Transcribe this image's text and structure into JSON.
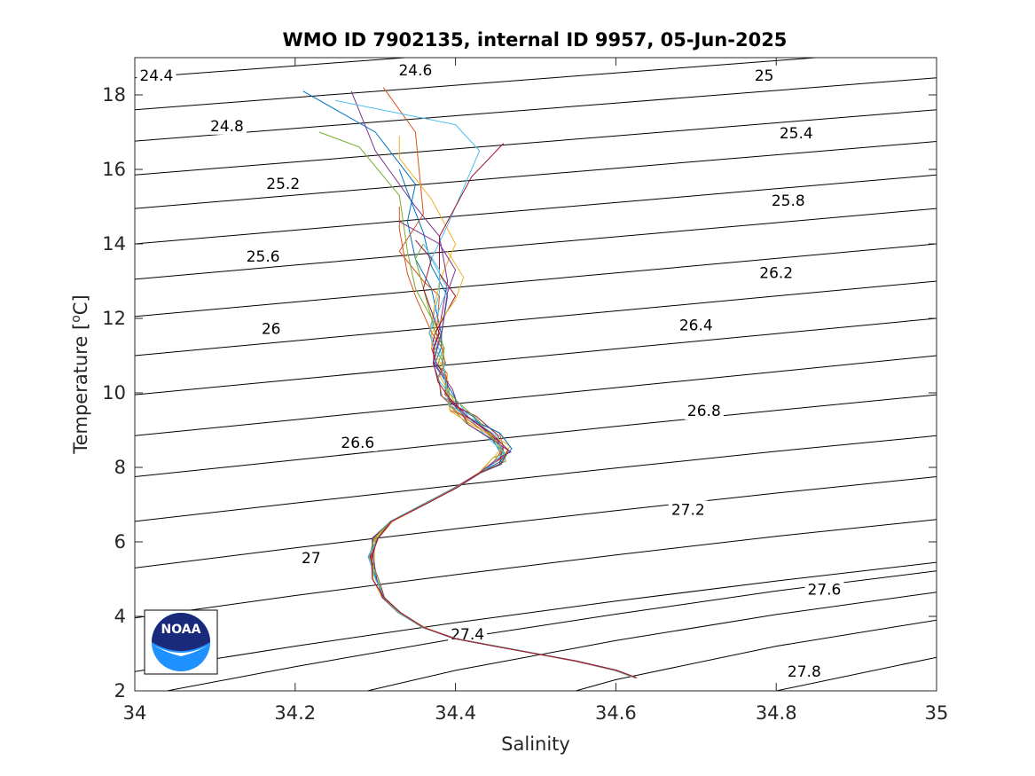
{
  "chart_data": {
    "type": "line",
    "title": "WMO ID 7902135, internal ID 9957, 05-Jun-2025",
    "xlabel": "Salinity",
    "ylabel_main": "Temperature [",
    "ylabel_sup": "o",
    "ylabel_end": "C]",
    "xlim": [
      34,
      35
    ],
    "ylim": [
      2,
      19
    ],
    "xticks": [
      34,
      34.2,
      34.4,
      34.6,
      34.8,
      35
    ],
    "xtick_labels": [
      "34",
      "34.2",
      "34.4",
      "34.6",
      "34.8",
      "35"
    ],
    "yticks": [
      2,
      4,
      6,
      8,
      10,
      12,
      14,
      16,
      18
    ],
    "ytick_labels": [
      "2",
      "4",
      "6",
      "8",
      "10",
      "12",
      "14",
      "16",
      "18"
    ],
    "grid": false,
    "logo_text": "NOAA",
    "contour_lines": [
      {
        "s": [
          34.0,
          34.2,
          34.4,
          34.6,
          34.8,
          35.0
        ],
        "t": [
          18.46,
          18.78,
          19.1,
          19.42,
          19.74,
          20.06
        ]
      },
      {
        "s": [
          34.0,
          34.2,
          34.4,
          34.6,
          34.8,
          35.0
        ],
        "t": [
          17.6,
          17.93,
          18.26,
          18.59,
          18.92,
          19.25
        ]
      },
      {
        "s": [
          34.0,
          34.2,
          34.4,
          34.6,
          34.8,
          35.0
        ],
        "t": [
          16.76,
          17.1,
          17.44,
          17.78,
          18.12,
          18.46
        ]
      },
      {
        "s": [
          34.0,
          34.2,
          34.4,
          34.6,
          34.8,
          35.0
        ],
        "t": [
          15.85,
          16.2,
          16.55,
          16.9,
          17.25,
          17.6
        ]
      },
      {
        "s": [
          34.0,
          34.2,
          34.4,
          34.6,
          34.8,
          35.0
        ],
        "t": [
          14.95,
          15.31,
          15.67,
          16.03,
          16.39,
          16.75
        ]
      },
      {
        "s": [
          34.0,
          34.2,
          34.4,
          34.6,
          34.8,
          35.0
        ],
        "t": [
          14.0,
          14.37,
          14.74,
          15.11,
          15.48,
          15.85
        ]
      },
      {
        "s": [
          34.0,
          34.2,
          34.4,
          34.6,
          34.8,
          35.0
        ],
        "t": [
          13.05,
          13.43,
          13.81,
          14.19,
          14.57,
          14.95
        ]
      },
      {
        "s": [
          34.0,
          34.2,
          34.4,
          34.6,
          34.8,
          35.0
        ],
        "t": [
          12.05,
          12.44,
          12.83,
          13.22,
          13.61,
          14.0
        ]
      },
      {
        "s": [
          34.0,
          34.2,
          34.4,
          34.6,
          34.8,
          35.0
        ],
        "t": [
          11.0,
          11.4,
          11.8,
          12.2,
          12.6,
          13.0
        ]
      },
      {
        "s": [
          34.0,
          34.2,
          34.4,
          34.6,
          34.8,
          35.0
        ],
        "t": [
          9.95,
          10.36,
          10.77,
          11.18,
          11.59,
          12.0
        ]
      },
      {
        "s": [
          34.0,
          34.2,
          34.4,
          34.6,
          34.8,
          35.0
        ],
        "t": [
          8.85,
          9.28,
          9.71,
          10.14,
          10.57,
          11.0
        ]
      },
      {
        "s": [
          34.0,
          34.2,
          34.4,
          34.6,
          34.8,
          35.0
        ],
        "t": [
          7.75,
          8.2,
          8.65,
          9.1,
          9.53,
          9.95
        ]
      },
      {
        "s": [
          34.0,
          34.2,
          34.4,
          34.6,
          34.8,
          35.0
        ],
        "t": [
          6.55,
          7.04,
          7.52,
          7.98,
          8.43,
          8.85
        ]
      },
      {
        "s": [
          34.0,
          34.2,
          34.4,
          34.6,
          34.8,
          35.0
        ],
        "t": [
          5.3,
          5.84,
          6.35,
          6.84,
          7.31,
          7.75
        ]
      },
      {
        "s": [
          34.0,
          34.2,
          34.4,
          34.6,
          34.8,
          35.0
        ],
        "t": [
          3.96,
          4.56,
          5.12,
          5.65,
          6.15,
          6.6
        ]
      },
      {
        "s": [
          34.0,
          34.2,
          34.4,
          34.6,
          34.8,
          35.0
        ],
        "t": [
          2.52,
          3.2,
          3.83,
          4.41,
          4.95,
          5.45
        ]
      },
      {
        "s": [
          34.04,
          34.2,
          34.4,
          34.6,
          34.8,
          35.0
        ],
        "t": [
          2.0,
          2.65,
          3.4,
          4.06,
          4.68,
          5.22
        ]
      },
      {
        "s": [
          34.29,
          34.4,
          34.6,
          34.8,
          35.0
        ],
        "t": [
          2.0,
          2.55,
          3.35,
          4.05,
          4.65
        ]
      },
      {
        "s": [
          34.55,
          34.6,
          34.8,
          35.0
        ],
        "t": [
          2.0,
          2.3,
          3.2,
          3.9
        ]
      },
      {
        "s": [
          34.8,
          35.0
        ],
        "t": [
          2.0,
          2.9
        ]
      }
    ],
    "contour_labels": [
      {
        "text": "24.4",
        "s": 34.027,
        "t": 18.45
      },
      {
        "text": "24.6",
        "s": 34.35,
        "t": 18.6
      },
      {
        "text": "25",
        "s": 34.785,
        "t": 18.45
      },
      {
        "text": "24.8",
        "s": 34.115,
        "t": 17.1
      },
      {
        "text": "25.4",
        "s": 34.825,
        "t": 16.9
      },
      {
        "text": "25.2",
        "s": 34.185,
        "t": 15.55
      },
      {
        "text": "25.8",
        "s": 34.815,
        "t": 15.1
      },
      {
        "text": "25.6",
        "s": 34.16,
        "t": 13.6
      },
      {
        "text": "26.2",
        "s": 34.8,
        "t": 13.15
      },
      {
        "text": "26",
        "s": 34.17,
        "t": 11.65
      },
      {
        "text": "26.4",
        "s": 34.7,
        "t": 11.75
      },
      {
        "text": "26.8",
        "s": 34.71,
        "t": 9.45
      },
      {
        "text": "26.6",
        "s": 34.278,
        "t": 8.6
      },
      {
        "text": "27.2",
        "s": 34.69,
        "t": 6.8
      },
      {
        "text": "27",
        "s": 34.22,
        "t": 5.5
      },
      {
        "text": "27.6",
        "s": 34.86,
        "t": 4.65
      },
      {
        "text": "27.4",
        "s": 34.415,
        "t": 3.45
      },
      {
        "text": "27.8",
        "s": 34.835,
        "t": 2.45
      }
    ],
    "profile_base": {
      "s": [
        34.625,
        34.6,
        34.55,
        34.5,
        34.45,
        34.4,
        34.36,
        34.33,
        34.31,
        34.3,
        34.295,
        34.3,
        34.32,
        34.36,
        34.4,
        34.43,
        34.455,
        34.462,
        34.45,
        34.42,
        34.4,
        34.39,
        34.385,
        34.38,
        34.378,
        34.375
      ],
      "t": [
        2.35,
        2.55,
        2.8,
        3.0,
        3.2,
        3.4,
        3.7,
        4.1,
        4.5,
        5.0,
        5.6,
        6.1,
        6.55,
        7.0,
        7.45,
        7.85,
        8.2,
        8.45,
        8.8,
        9.25,
        9.6,
        10.0,
        10.4,
        10.8,
        11.2,
        11.6
      ]
    },
    "series": [
      {
        "color": "#0072BD",
        "top_s": [
          34.37,
          34.37,
          34.35,
          34.34,
          34.35,
          34.3,
          34.21
        ],
        "top_t": [
          12.0,
          12.8,
          13.6,
          14.6,
          15.6,
          17.0,
          18.1
        ]
      },
      {
        "color": "#D95319",
        "top_s": [
          34.38,
          34.38,
          34.36,
          34.33,
          34.36,
          34.35,
          34.31
        ],
        "top_t": [
          12.0,
          12.6,
          13.0,
          13.8,
          14.8,
          17.0,
          18.2
        ]
      },
      {
        "color": "#EDB120",
        "top_s": [
          34.38,
          34.38,
          34.4,
          34.37,
          34.33,
          34.33
        ],
        "top_t": [
          12.0,
          13.0,
          14.0,
          15.2,
          16.3,
          16.9
        ]
      },
      {
        "color": "#7E2F8E",
        "top_s": [
          34.37,
          34.39,
          34.38,
          34.35,
          34.3,
          34.27
        ],
        "top_t": [
          12.0,
          13.0,
          14.2,
          15.0,
          16.5,
          18.1
        ]
      },
      {
        "color": "#77AC30",
        "top_s": [
          34.36,
          34.35,
          34.34,
          34.33,
          34.28,
          34.23
        ],
        "top_t": [
          12.0,
          12.8,
          13.8,
          15.3,
          16.6,
          17.0
        ]
      },
      {
        "color": "#4DBEEE",
        "top_s": [
          34.38,
          34.39,
          34.37,
          34.39,
          34.43,
          34.4,
          34.25
        ],
        "top_t": [
          12.0,
          12.8,
          13.6,
          14.5,
          16.5,
          17.2,
          17.85
        ]
      },
      {
        "color": "#A2142F",
        "top_s": [
          34.37,
          34.4,
          34.38,
          34.38,
          34.42,
          34.46
        ],
        "top_t": [
          12.0,
          12.6,
          13.2,
          14.2,
          15.8,
          16.7
        ]
      },
      {
        "color": "#0072BD",
        "top_s": [
          34.38,
          34.39,
          34.37,
          34.36,
          34.34,
          34.33
        ],
        "top_t": [
          12.0,
          12.6,
          13.4,
          14.3,
          15.4,
          16.0
        ]
      },
      {
        "color": "#D95319",
        "top_s": [
          34.36,
          34.35,
          34.34,
          34.33,
          34.33
        ],
        "top_t": [
          12.0,
          12.6,
          13.2,
          14.4,
          15.0
        ]
      },
      {
        "color": "#EDB120",
        "top_s": [
          34.39,
          34.4,
          34.41,
          34.39
        ],
        "top_t": [
          12.0,
          12.5,
          13.1,
          13.8
        ]
      },
      {
        "color": "#7E2F8E",
        "top_s": [
          34.38,
          34.39,
          34.4,
          34.38,
          34.33
        ],
        "top_t": [
          12.0,
          12.7,
          13.3,
          14.0,
          14.6
        ]
      },
      {
        "color": "#77AC30",
        "top_s": [
          34.37,
          34.36,
          34.35,
          34.36
        ],
        "top_t": [
          12.0,
          12.8,
          13.6,
          14.0
        ]
      },
      {
        "color": "#4DBEEE",
        "top_s": [
          34.37,
          34.38,
          34.38,
          34.36
        ],
        "top_t": [
          12.0,
          12.7,
          13.3,
          14.0
        ]
      },
      {
        "color": "#A2142F",
        "top_s": [
          34.36,
          34.36,
          34.37,
          34.35
        ],
        "top_t": [
          12.0,
          12.8,
          13.6,
          14.1
        ]
      }
    ]
  }
}
